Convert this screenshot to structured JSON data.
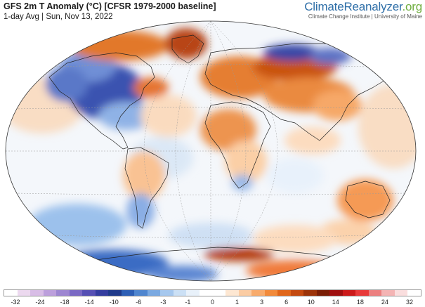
{
  "header": {
    "title": "GFS 2m T Anomaly (°C) [CFSR 1979-2000 baseline]",
    "subtitle": "1-day Avg | Sun, Nov 13, 2022"
  },
  "brand": {
    "name": "ClimateReanalyzer",
    "tld": ".org",
    "tagline": "Climate Change Institute | University of Maine"
  },
  "legend": {
    "colors": [
      "#ffffff",
      "#ecd9ef",
      "#d8bde6",
      "#bc9fdc",
      "#9d86d1",
      "#7a69c4",
      "#5650b4",
      "#343d9f",
      "#1f3a8a",
      "#2d5fb5",
      "#4f86cf",
      "#7aa9e1",
      "#a6c8ee",
      "#cbe0f5",
      "#e8f1fa",
      "#ffffff",
      "#ffffff",
      "#fde7d2",
      "#fbcca3",
      "#f8ab6c",
      "#f28a3a",
      "#e0661a",
      "#c44a10",
      "#9c3309",
      "#7a1e05",
      "#a01010",
      "#cc1a1a",
      "#e83a3a",
      "#ec8080",
      "#f4b4b4",
      "#fadede",
      "#ffffff"
    ],
    "ticks": [
      "-32",
      "-24",
      "-18",
      "-14",
      "-10",
      "-6",
      "-3",
      "-1",
      "0",
      "1",
      "3",
      "6",
      "10",
      "14",
      "18",
      "24",
      "32"
    ]
  }
}
